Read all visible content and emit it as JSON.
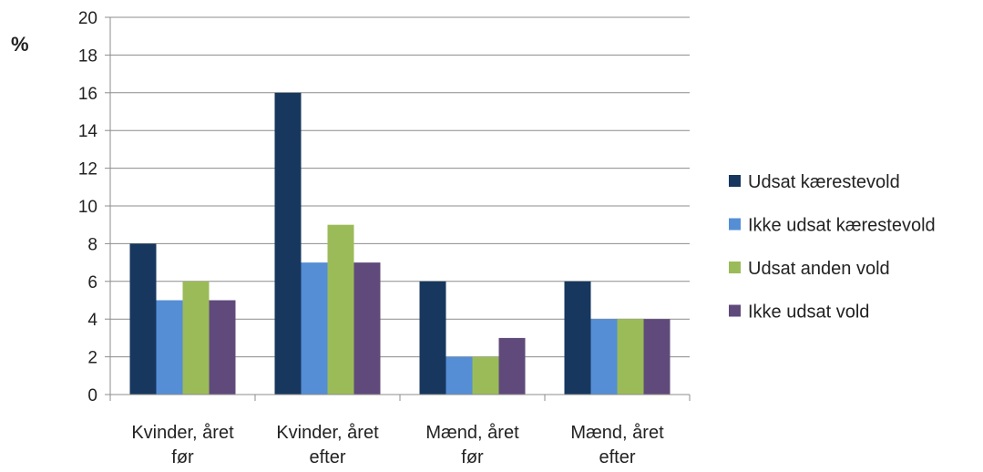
{
  "chart_data": {
    "type": "bar",
    "title": "",
    "xlabel": "",
    "ylabel": "%",
    "ylim": [
      0,
      20
    ],
    "ytick_step": 2,
    "grid": true,
    "legend_position": "right",
    "categories": [
      [
        "Kvinder, året",
        "før"
      ],
      [
        "Kvinder, året",
        "efter"
      ],
      [
        "Mænd, året",
        "før"
      ],
      [
        "Mænd, året",
        "efter"
      ]
    ],
    "series": [
      {
        "name": "Udsat kærestevold",
        "color": "#17375e",
        "values": [
          8,
          16,
          6,
          6
        ]
      },
      {
        "name": "Ikke udsat kærestevold",
        "color": "#558ed5",
        "values": [
          5,
          7,
          2,
          4
        ]
      },
      {
        "name": "Udsat anden vold",
        "color": "#9bbb59",
        "values": [
          6,
          9,
          2,
          4
        ]
      },
      {
        "name": "Ikke udsat vold",
        "color": "#604a7b",
        "values": [
          5,
          7,
          3,
          4
        ]
      }
    ]
  }
}
